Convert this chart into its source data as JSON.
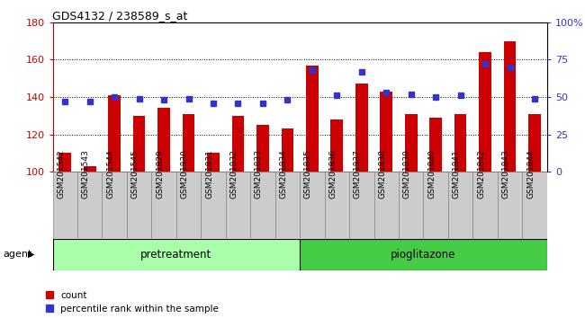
{
  "title": "GDS4132 / 238589_s_at",
  "categories": [
    "GSM201542",
    "GSM201543",
    "GSM201544",
    "GSM201545",
    "GSM201829",
    "GSM201830",
    "GSM201831",
    "GSM201832",
    "GSM201833",
    "GSM201834",
    "GSM201835",
    "GSM201836",
    "GSM201837",
    "GSM201838",
    "GSM201839",
    "GSM201840",
    "GSM201841",
    "GSM201842",
    "GSM201843",
    "GSM201844"
  ],
  "counts": [
    110,
    103,
    141,
    130,
    134,
    131,
    110,
    130,
    125,
    123,
    157,
    128,
    147,
    143,
    131,
    129,
    131,
    164,
    170,
    131
  ],
  "percentiles": [
    47,
    47,
    50,
    49,
    48,
    49,
    46,
    46,
    46,
    48,
    68,
    51,
    67,
    53,
    52,
    50,
    51,
    72,
    70,
    49
  ],
  "count_base": 100,
  "red_color": "#cc0000",
  "blue_color": "#3333cc",
  "ylim_left": [
    100,
    180
  ],
  "ylim_right": [
    0,
    100
  ],
  "yticks_left": [
    100,
    120,
    140,
    160,
    180
  ],
  "yticks_right": [
    0,
    25,
    50,
    75,
    100
  ],
  "right_ytick_label": [
    "0",
    "25",
    "50",
    "75",
    "100%"
  ],
  "legend_count": "count",
  "legend_pct": "percentile rank within the sample",
  "agent_label": "agent",
  "tick_bg_color": "#cccccc",
  "group1_label": "pretreatment",
  "group2_label": "pioglitazone",
  "group1_color": "#aaffaa",
  "group2_color": "#44cc44",
  "bar_width": 0.5
}
